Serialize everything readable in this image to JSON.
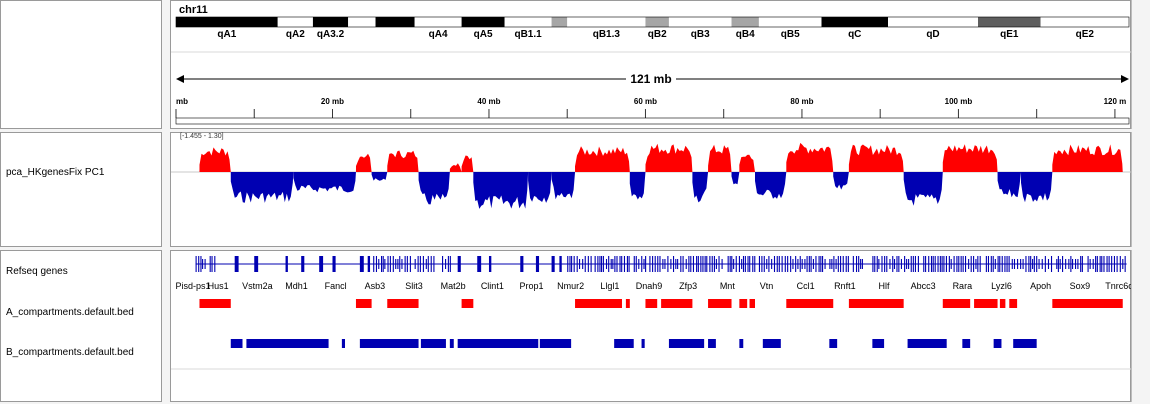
{
  "chromosome": "chr11",
  "ruler": {
    "span_label": "121 mb",
    "ticks": [
      {
        "mb": 0,
        "label": "mb"
      },
      {
        "mb": 20,
        "label": "20 mb"
      },
      {
        "mb": 40,
        "label": "40 mb"
      },
      {
        "mb": 60,
        "label": "60 mb"
      },
      {
        "mb": 80,
        "label": "80 mb"
      },
      {
        "mb": 100,
        "label": "100 mb"
      },
      {
        "mb": 120,
        "label": "120 m"
      }
    ]
  },
  "cytobands": [
    {
      "name": "qA1",
      "start": 0,
      "end": 13,
      "stain": "black"
    },
    {
      "name": "qA2",
      "start": 13,
      "end": 17.5,
      "stain": "white"
    },
    {
      "name": "qA3.2",
      "start": 17.5,
      "end": 22,
      "stain": "black"
    },
    {
      "name": "",
      "start": 22,
      "end": 25.5,
      "stain": "white"
    },
    {
      "name": "",
      "start": 25.5,
      "end": 30.5,
      "stain": "black"
    },
    {
      "name": "qA4",
      "start": 30.5,
      "end": 36.5,
      "stain": "white"
    },
    {
      "name": "qA5",
      "start": 36.5,
      "end": 42,
      "stain": "black"
    },
    {
      "name": "qB1.1",
      "start": 42,
      "end": 48,
      "stain": "white"
    },
    {
      "name": "",
      "start": 48,
      "end": 50,
      "stain": "gray"
    },
    {
      "name": "qB1.3",
      "start": 50,
      "end": 60,
      "stain": "white"
    },
    {
      "name": "qB2",
      "start": 60,
      "end": 63,
      "stain": "gray"
    },
    {
      "name": "qB3",
      "start": 63,
      "end": 71,
      "stain": "white"
    },
    {
      "name": "qB4",
      "start": 71,
      "end": 74.5,
      "stain": "gray"
    },
    {
      "name": "qB5",
      "start": 74.5,
      "end": 82.5,
      "stain": "white"
    },
    {
      "name": "qC",
      "start": 82.5,
      "end": 91,
      "stain": "black"
    },
    {
      "name": "qD",
      "start": 91,
      "end": 102.5,
      "stain": "white"
    },
    {
      "name": "qE1",
      "start": 102.5,
      "end": 110.5,
      "stain": "darkgray"
    },
    {
      "name": "qE2",
      "start": 110.5,
      "end": 121.8,
      "stain": "white"
    }
  ],
  "tracks": {
    "pca": {
      "name": "pca_HKgenesFix PC1",
      "range_label": "[-1.455 - 1.30]"
    },
    "refseq": {
      "name": "Refseq genes"
    },
    "compA": {
      "name": "A_compartments.default.bed"
    },
    "compB": {
      "name": "B_compartments.default.bed"
    }
  },
  "gene_labels": [
    "Pisd-ps1",
    "Hus1",
    "Vstm2a",
    "Mdh1",
    "Fancl",
    "Asb3",
    "Slit3",
    "Mat2b",
    "Clint1",
    "Prop1",
    "Nmur2",
    "Llgl1",
    "Dnah9",
    "Zfp3",
    "Mnt",
    "Vtn",
    "Ccl1",
    "Rnft1",
    "Hlf",
    "Abcc3",
    "Rara",
    "Lyzl6",
    "Apoh",
    "Sox9",
    "Tnrc6c"
  ],
  "pc1_segments": [
    {
      "start": 3,
      "end": 7,
      "value": 0.75
    },
    {
      "start": 7,
      "end": 15,
      "value": -0.9
    },
    {
      "start": 15,
      "end": 23,
      "value": -0.6
    },
    {
      "start": 23,
      "end": 25,
      "value": 0.6
    },
    {
      "start": 25,
      "end": 27,
      "value": -0.3
    },
    {
      "start": 27,
      "end": 31,
      "value": 0.65
    },
    {
      "start": 31,
      "end": 35,
      "value": -1.0
    },
    {
      "start": 35,
      "end": 36.5,
      "value": 0.3
    },
    {
      "start": 36.5,
      "end": 38,
      "value": 0.6
    },
    {
      "start": 38,
      "end": 45,
      "value": -1.1
    },
    {
      "start": 45,
      "end": 48,
      "value": -0.9
    },
    {
      "start": 48,
      "end": 51,
      "value": -0.8
    },
    {
      "start": 51,
      "end": 58,
      "value": 0.75
    },
    {
      "start": 58,
      "end": 60,
      "value": -1.0
    },
    {
      "start": 60,
      "end": 66,
      "value": 0.85
    },
    {
      "start": 66,
      "end": 68,
      "value": -0.9
    },
    {
      "start": 68,
      "end": 71,
      "value": 0.8
    },
    {
      "start": 71,
      "end": 72,
      "value": -0.5
    },
    {
      "start": 72,
      "end": 74,
      "value": 0.6
    },
    {
      "start": 74,
      "end": 78,
      "value": -0.8
    },
    {
      "start": 78,
      "end": 84,
      "value": 0.85
    },
    {
      "start": 84,
      "end": 86,
      "value": -0.6
    },
    {
      "start": 86,
      "end": 93,
      "value": 0.8
    },
    {
      "start": 93,
      "end": 98,
      "value": -1.0
    },
    {
      "start": 98,
      "end": 105,
      "value": 0.85
    },
    {
      "start": 105,
      "end": 108,
      "value": -0.8
    },
    {
      "start": 108,
      "end": 112,
      "value": -0.9
    },
    {
      "start": 112,
      "end": 121,
      "value": 0.8
    }
  ],
  "a_compartments": [
    {
      "start": 3,
      "end": 7
    },
    {
      "start": 23,
      "end": 25
    },
    {
      "start": 27,
      "end": 31
    },
    {
      "start": 36.5,
      "end": 38
    },
    {
      "start": 51,
      "end": 57
    },
    {
      "start": 57.5,
      "end": 58
    },
    {
      "start": 60,
      "end": 61.5
    },
    {
      "start": 62,
      "end": 66
    },
    {
      "start": 68,
      "end": 71
    },
    {
      "start": 72,
      "end": 73
    },
    {
      "start": 73.3,
      "end": 74
    },
    {
      "start": 78,
      "end": 84
    },
    {
      "start": 86,
      "end": 93
    },
    {
      "start": 98,
      "end": 101.5
    },
    {
      "start": 102,
      "end": 105
    },
    {
      "start": 105.3,
      "end": 106
    },
    {
      "start": 106.5,
      "end": 107.5
    },
    {
      "start": 112,
      "end": 121
    }
  ],
  "b_compartments": [
    {
      "start": 7,
      "end": 8.5
    },
    {
      "start": 9,
      "end": 19.5
    },
    {
      "start": 21.2,
      "end": 21.6
    },
    {
      "start": 23.5,
      "end": 31
    },
    {
      "start": 31.3,
      "end": 34.5
    },
    {
      "start": 35,
      "end": 35.5
    },
    {
      "start": 36,
      "end": 46.3
    },
    {
      "start": 46.5,
      "end": 50.5
    },
    {
      "start": 56,
      "end": 58.5
    },
    {
      "start": 59.5,
      "end": 59.9
    },
    {
      "start": 63,
      "end": 67.5
    },
    {
      "start": 68,
      "end": 69
    },
    {
      "start": 72,
      "end": 72.5
    },
    {
      "start": 75,
      "end": 77.3
    },
    {
      "start": 83.5,
      "end": 84.5
    },
    {
      "start": 89,
      "end": 90
    },
    {
      "start": 89.8,
      "end": 90.5
    },
    {
      "start": 89.2,
      "end": 89.6
    },
    {
      "start": 93.5,
      "end": 98.5
    },
    {
      "start": 100.5,
      "end": 101.5
    },
    {
      "start": 104.5,
      "end": 105.5
    },
    {
      "start": 107,
      "end": 110
    }
  ],
  "colors": {
    "a_compartment": "#ff0000",
    "b_compartment": "#0000b2",
    "gene": "#0000b2"
  }
}
